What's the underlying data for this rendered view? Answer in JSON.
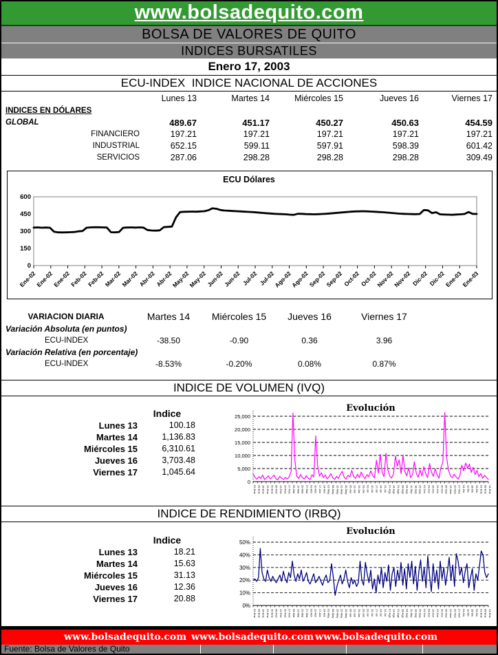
{
  "header": {
    "title": "www.bolsadequito.com",
    "subtitle1": "BOLSA DE VALORES DE QUITO",
    "subtitle2": "INDICES BURSATILES",
    "date": "Enero 17, 2003"
  },
  "ecu_index": {
    "title": "ECU-INDEX  INDICE NACIONAL DE ACCIONES",
    "day_headers": [
      "Lunes 13",
      "Martes 14",
      "Miércoles 15",
      "Jueves 16",
      "Viernes 17"
    ],
    "group_label": "INDICES EN DÓLARES",
    "rows": [
      {
        "label": "GLOBAL",
        "style": "global",
        "values": [
          "489.67",
          "451.17",
          "450.27",
          "450.63",
          "454.59"
        ]
      },
      {
        "label": "FINANCIERO",
        "style": "sub",
        "values": [
          "197.21",
          "197.21",
          "197.21",
          "197.21",
          "197.21"
        ]
      },
      {
        "label": "INDUSTRIAL",
        "style": "sub",
        "values": [
          "652.15",
          "599.11",
          "597.91",
          "598.39",
          "601.42"
        ]
      },
      {
        "label": "SERVICIOS",
        "style": "sub",
        "values": [
          "287.06",
          "298.28",
          "298.28",
          "298.28",
          "309.49"
        ]
      }
    ]
  },
  "variacion": {
    "title": "VARIACION DIARIA",
    "day_headers": [
      "Martes 14",
      "Miércoles 15",
      "Jueves 16",
      "Viernes 17"
    ],
    "absoluta_label": "Variación Absoluta (en puntos)",
    "relativa_label": "Variación Relativa (en porcentaje)",
    "row_label": "ECU-INDEX",
    "absoluta_values": [
      "-38.50",
      "-0.90",
      "0.36",
      "3.96"
    ],
    "relativa_values": [
      "-8.53%",
      "-0.20%",
      "0.08%",
      "0.87%"
    ]
  },
  "ivq": {
    "title": "INDICE DE VOLUMEN (IVQ)",
    "table_header": "Indice",
    "rows": [
      {
        "label": "Lunes 13",
        "value": "100.18"
      },
      {
        "label": "Martes 14",
        "value": "1,136.83"
      },
      {
        "label": "Miércoles 15",
        "value": "6,310.61"
      },
      {
        "label": "Jueves 16",
        "value": "3,703.48"
      },
      {
        "label": "Viernes 17",
        "value": "1,045.64"
      }
    ]
  },
  "irbq": {
    "title": "INDICE DE RENDIMIENTO (IRBQ)",
    "table_header": "Indice",
    "rows": [
      {
        "label": "Lunes 13",
        "value": "18.21"
      },
      {
        "label": "Martes 14",
        "value": "15.63"
      },
      {
        "label": "Miércoles 15",
        "value": "31.13"
      },
      {
        "label": "Jueves 16",
        "value": "12.36"
      },
      {
        "label": "Viernes 17",
        "value": "20.88"
      }
    ]
  },
  "footer": {
    "urls": [
      "www.bolsadequito.com",
      "www.bolsadequito.com",
      "www.bolsadequito.com"
    ],
    "source": "Fuente: Bolsa de Valores de Quito"
  },
  "colors": {
    "header_green": "#339933",
    "bar_gray": "#808080",
    "footer_red": "#FF0000",
    "ecu_line": "#000000",
    "ivq_line": "#FF00FF",
    "irbq_line": "#000080"
  },
  "chart_data": [
    {
      "id": "ecu-chart",
      "type": "line",
      "title": "ECU Dólares",
      "color": "#000000",
      "line_width": 2.8,
      "xlabel": "",
      "ylabel": "",
      "ylim": [
        0,
        600
      ],
      "yticks": [
        0,
        150,
        300,
        450,
        600
      ],
      "ytick_labels": [
        "0",
        "150",
        "300",
        "450",
        "600"
      ],
      "grid": "box",
      "legend": "none",
      "x_tick_labels": [
        "Ene-02",
        "Ene-02",
        "Ene-02",
        "Feb-02",
        "Feb-02",
        "Mar-02",
        "Mar-02",
        "Abr-02",
        "Abr-02",
        "May-02",
        "May-02",
        "Jun-02",
        "Jun-02",
        "Jul-02",
        "Jul-02",
        "Ago-02",
        "Ago-02",
        "Sep-02",
        "Sep-02",
        "Oct-02",
        "Oct-02",
        "Nov-02",
        "Nov-02",
        "Dic-02",
        "Dic-02",
        "Ene-03",
        "Ene-03"
      ],
      "values": [
        331,
        333,
        330,
        332,
        330,
        296,
        290,
        289,
        290,
        291,
        293,
        299,
        301,
        330,
        333,
        334,
        334,
        333,
        332,
        291,
        290,
        293,
        330,
        332,
        333,
        331,
        333,
        331,
        310,
        306,
        305,
        307,
        335,
        338,
        340,
        420,
        466,
        469,
        470,
        471,
        470,
        472,
        474,
        483,
        500,
        495,
        484,
        480,
        478,
        476,
        474,
        472,
        470,
        468,
        466,
        463,
        460,
        457,
        455,
        452,
        450,
        449,
        447,
        444,
        442,
        452,
        451,
        449,
        448,
        447,
        448,
        450,
        452,
        455,
        458,
        461,
        464,
        467,
        470,
        472,
        473,
        474,
        473,
        471,
        469,
        467,
        465,
        462,
        459,
        456,
        453,
        451,
        450,
        449,
        448,
        450,
        484,
        482,
        458,
        465,
        447,
        445,
        444,
        443,
        445,
        447,
        450,
        467,
        451,
        450
      ]
    },
    {
      "id": "ivq-chart",
      "type": "line",
      "title": "Evolución",
      "color": "#FF00FF",
      "line_width": 1.2,
      "xlabel": "",
      "ylabel": "",
      "ylim": [
        0,
        25000
      ],
      "yticks": [
        0,
        5000,
        10000,
        15000,
        20000,
        25000
      ],
      "ytick_labels": [
        "0",
        "5,000",
        "10,000",
        "15,000",
        "20,000",
        "25,000"
      ],
      "grid": "dashed",
      "legend": "none",
      "x_tick_labels": [
        "02-Ene",
        "09-Ene",
        "16-Ene",
        "23-Ene",
        "30-Ene",
        "06-Feb",
        "13-Feb",
        "20-Feb",
        "27-Feb",
        "06-Mar",
        "13-Mar",
        "20-Mar",
        "27-Mar",
        "03-Abr",
        "10-Abr",
        "17-Abr",
        "24-Abr",
        "01-May",
        "08-May",
        "15-May",
        "22-May",
        "29-May",
        "05-Jun",
        "12-Jun",
        "19-Jun",
        "26-Jun",
        "03-Jul",
        "10-Jul",
        "17-Jul",
        "24-Jul",
        "31-Jul",
        "07-Ago",
        "14-Ago",
        "21-Ago",
        "28-Ago",
        "04-Sep",
        "11-Sep",
        "18-Sep",
        "25-Sep",
        "02-Oct",
        "09-Oct",
        "16-Oct",
        "23-Oct",
        "30-Oct",
        "06-Nov",
        "13-Nov",
        "20-Nov",
        "27-Nov",
        "04-Dic",
        "11-Dic",
        "18-Dic",
        "25-Dic",
        "01-Ene",
        "08-Ene",
        "14-Ene"
      ],
      "values": [
        2900,
        1600,
        900,
        1900,
        1200,
        2500,
        800,
        1500,
        2200,
        1000,
        1700,
        2500,
        1100,
        700,
        2000,
        1300,
        850,
        1600,
        1050,
        1800,
        3900,
        26200,
        8200,
        2100,
        1250,
        2700,
        1500,
        1000,
        2300,
        1350,
        820,
        2600,
        1800,
        17500,
        6100,
        2100,
        3400,
        1500,
        2600,
        1050,
        1850,
        3100,
        1450,
        820,
        2050,
        1250,
        2950,
        3950,
        1650,
        950,
        2450,
        1750,
        4250,
        1950,
        1250,
        2850,
        1550,
        3650,
        2050,
        1150,
        2650,
        1850,
        4150,
        2350,
        1450,
        8200,
        3200,
        10400,
        3600,
        1900,
        10800,
        4600,
        2100,
        1350,
        2950,
        9800,
        5900,
        8300,
        3000,
        10200,
        3900,
        2250,
        5300,
        1550,
        2650,
        7600,
        3250,
        1650,
        4450,
        2150,
        5700,
        2950,
        1550,
        6900,
        3650,
        2050,
        4850,
        2550,
        1350,
        5450,
        7300,
        26400,
        9300,
        4300,
        2250,
        1450,
        2850,
        1750,
        950,
        2350,
        6300,
        4100,
        7100,
        5100,
        6700,
        3500,
        5500,
        2700,
        4300,
        1900,
        3100,
        1300,
        2400,
        1600,
        800
      ]
    },
    {
      "id": "irbq-chart",
      "type": "line",
      "title": "Evolución",
      "color": "#000080",
      "line_width": 1.3,
      "xlabel": "",
      "ylabel": "",
      "ylim": [
        0,
        50
      ],
      "yticks": [
        0,
        10,
        20,
        30,
        40,
        50
      ],
      "ytick_labels": [
        "0%",
        "10%",
        "20%",
        "30%",
        "40%",
        "50%"
      ],
      "grid": "dashed",
      "legend": "none",
      "x_tick_labels": [
        "02-Ene",
        "09-Ene",
        "16-Ene",
        "23-Ene",
        "30-Ene",
        "06-Feb",
        "13-Feb",
        "20-Feb",
        "27-Feb",
        "06-Mar",
        "13-Mar",
        "20-Mar",
        "27-Mar",
        "03-Abr",
        "10-Abr",
        "17-Abr",
        "24-Abr",
        "01-May",
        "08-May",
        "15-May",
        "22-May",
        "29-May",
        "05-Jun",
        "12-Jun",
        "19-Jun",
        "26-Jun",
        "03-Jul",
        "10-Jul",
        "17-Jul",
        "24-Jul",
        "31-Jul",
        "07-Ago",
        "14-Ago",
        "21-Ago",
        "28-Ago",
        "04-Sep",
        "11-Sep",
        "18-Sep",
        "25-Sep",
        "02-Oct",
        "09-Oct",
        "16-Oct",
        "23-Oct",
        "30-Oct",
        "06-Nov",
        "13-Nov",
        "20-Nov",
        "27-Nov",
        "04-Dic",
        "11-Dic",
        "18-Dic",
        "25-Dic",
        "01-Ene",
        "08-Ene",
        "14-Ene"
      ],
      "values": [
        20,
        21,
        19,
        22,
        45,
        26,
        21,
        19,
        28,
        22,
        19,
        23,
        20,
        18,
        21,
        24,
        19,
        27,
        21,
        18,
        26,
        22,
        35,
        24,
        19,
        25,
        21,
        28,
        19,
        22,
        26,
        19,
        17,
        21,
        25,
        18,
        20,
        23,
        19,
        16,
        21,
        24,
        18,
        20,
        33,
        22,
        8,
        15,
        20,
        24,
        17,
        21,
        28,
        19,
        14,
        22,
        17,
        20,
        15,
        18,
        35,
        20,
        16,
        34,
        25,
        18,
        28,
        13,
        21,
        10,
        24,
        17,
        30,
        14,
        26,
        19,
        32,
        12,
        25,
        30,
        15,
        28,
        20,
        34,
        16,
        29,
        13,
        33,
        22,
        35,
        17,
        31,
        12,
        27,
        36,
        19,
        30,
        14,
        39,
        24,
        11,
        33,
        18,
        28,
        13,
        35,
        21,
        30,
        16,
        26,
        38,
        20,
        32,
        15,
        41,
        35,
        24,
        30,
        18,
        27,
        33,
        14,
        22,
        29,
        12,
        25,
        20,
        31,
        43,
        40,
        26,
        22,
        25
      ]
    }
  ]
}
